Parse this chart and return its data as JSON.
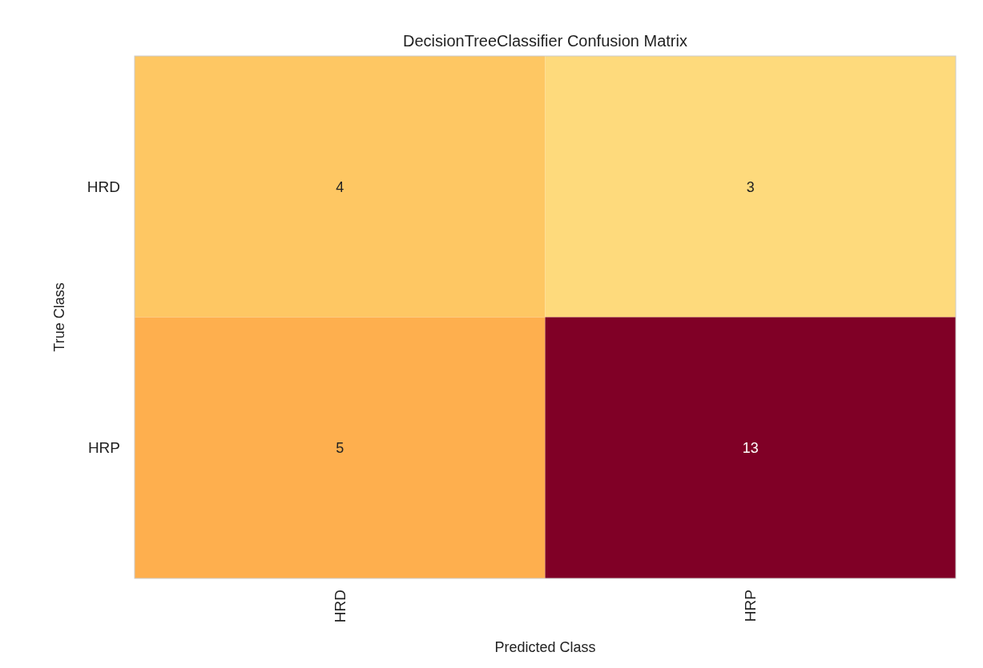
{
  "chart_data": {
    "type": "heatmap",
    "title": "DecisionTreeClassifier Confusion Matrix",
    "xlabel": "Predicted Class",
    "ylabel": "True Class",
    "categories": [
      "HRD",
      "HRP"
    ],
    "y_categories": [
      "HRD",
      "HRP"
    ],
    "cells": [
      [
        4,
        3
      ],
      [
        5,
        13
      ]
    ],
    "grid": false,
    "data_labels": true
  }
}
